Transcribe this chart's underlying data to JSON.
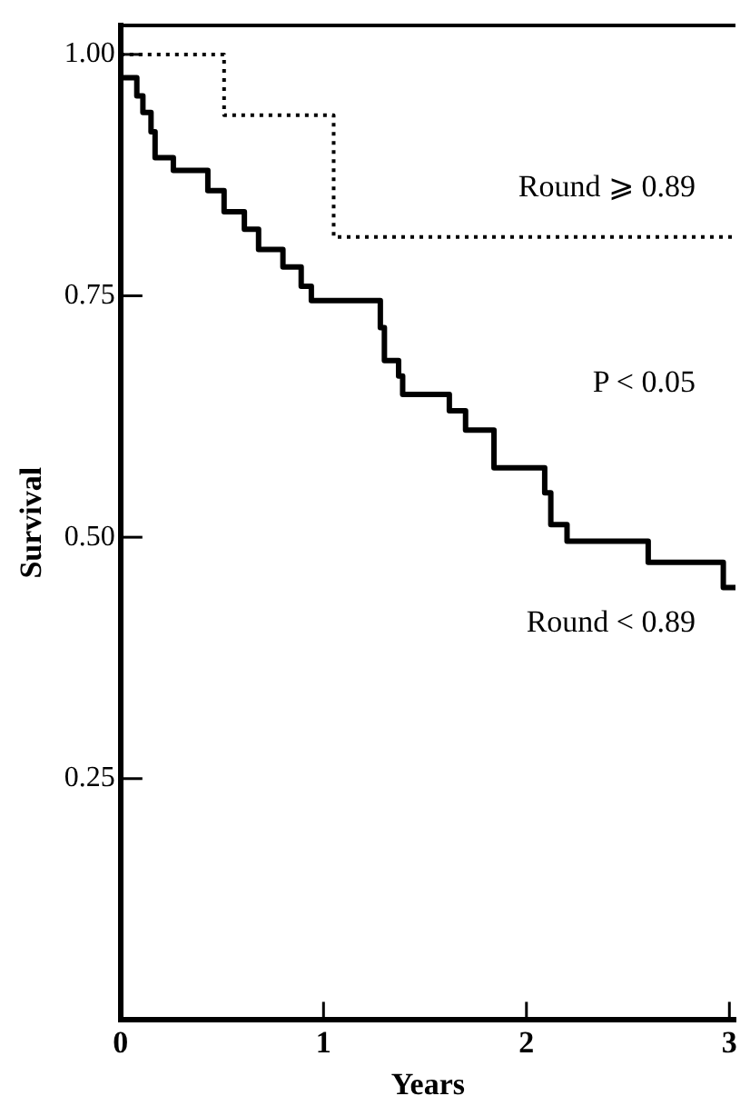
{
  "chart_data": {
    "type": "step",
    "xlabel": "Years",
    "ylabel": "Survival",
    "xlim": [
      0,
      3.03
    ],
    "ylim": [
      0,
      1.03
    ],
    "xticks": [
      0,
      1,
      2,
      3
    ],
    "yticks": [
      {
        "value": 0.25,
        "label": "0.25"
      },
      {
        "value": 0.5,
        "label": "0.50"
      },
      {
        "value": 0.75,
        "label": "0.75"
      },
      {
        "value": 1,
        "label": "1.00"
      }
    ],
    "grid": false,
    "legend": false,
    "marker": "none",
    "annotations": [
      "P < 0.05"
    ],
    "series": [
      {
        "name": "Round ⩾ 0.89",
        "color": "#000000",
        "line_style": "dotted",
        "x": [
          0,
          0.51,
          1.05,
          3.03
        ],
        "values": [
          1,
          0.937,
          0.811,
          0.811
        ]
      },
      {
        "name": "Round < 0.89",
        "color": "#000000",
        "line_style": "solid",
        "x": [
          0,
          0.08,
          0.11,
          0.15,
          0.17,
          0.26,
          0.43,
          0.51,
          0.61,
          0.68,
          0.8,
          0.89,
          0.94,
          1.28,
          1.3,
          1.37,
          1.39,
          1.62,
          1.7,
          1.84,
          2.09,
          2.12,
          2.2,
          2.6,
          2.97,
          3.03
        ],
        "values": [
          0.976,
          0.957,
          0.94,
          0.92,
          0.893,
          0.88,
          0.859,
          0.837,
          0.819,
          0.798,
          0.78,
          0.76,
          0.745,
          0.717,
          0.683,
          0.667,
          0.648,
          0.631,
          0.611,
          0.572,
          0.546,
          0.513,
          0.496,
          0.474,
          0.448,
          0.448
        ]
      }
    ]
  }
}
